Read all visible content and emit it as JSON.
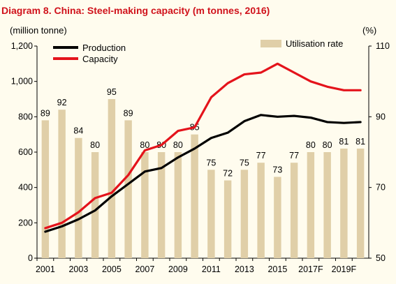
{
  "colors": {
    "production": "#000000",
    "capacity": "#e4131b",
    "utilisation": "#e0cfa8",
    "title": "#d0121b",
    "background": "#fffcee"
  },
  "chart_data": {
    "type": "bar+line",
    "title": "Diagram 8. China: Steel-making capacity (m tonnes, 2016)",
    "left_axis_label": "(million tonne)",
    "right_axis_label": "(%)",
    "ylim_left": [
      0,
      1200
    ],
    "yticks_left": [
      "0",
      "200",
      "400",
      "600",
      "800",
      "1,000",
      "1,200"
    ],
    "ylim_right": [
      50,
      110
    ],
    "yticks_right": [
      "50",
      "70",
      "90",
      "110"
    ],
    "categories": [
      "2001",
      "2002",
      "2003",
      "2004",
      "2005",
      "2006",
      "2007",
      "2008",
      "2009",
      "2010",
      "2011",
      "2012",
      "2013",
      "2014",
      "2015",
      "2016",
      "2017F",
      "2018F",
      "2019F",
      "2020F"
    ],
    "x_tick_labels": [
      "2001",
      "",
      "2003",
      "",
      "2005",
      "",
      "2007",
      "",
      "2009",
      "",
      "2011",
      "",
      "2013",
      "",
      "2015",
      "",
      "2017F",
      "",
      "2019F",
      ""
    ],
    "legend": [
      "Production",
      "Capacity",
      "Utilisation rate"
    ],
    "series": [
      {
        "name": "Utilisation rate",
        "type": "bar",
        "axis": "right",
        "values": [
          89,
          92,
          84,
          80,
          95,
          89,
          80,
          80,
          80,
          85,
          75,
          72,
          75,
          77,
          73,
          77,
          80,
          80,
          81,
          81
        ]
      },
      {
        "name": "Production",
        "type": "line",
        "axis": "left",
        "values": [
          150,
          180,
          220,
          270,
          350,
          420,
          490,
          510,
          570,
          620,
          680,
          710,
          775,
          810,
          800,
          805,
          795,
          770,
          765,
          770
        ]
      },
      {
        "name": "Capacity",
        "type": "line",
        "axis": "left",
        "values": [
          170,
          200,
          260,
          340,
          370,
          470,
          610,
          640,
          720,
          740,
          910,
          990,
          1040,
          1050,
          1100,
          1050,
          1000,
          970,
          950,
          950
        ]
      }
    ],
    "bar_labels": [
      "89",
      "92",
      "84",
      "80",
      "95",
      "89",
      "80",
      "80",
      "80",
      "85",
      "75",
      "72",
      "75",
      "77",
      "73",
      "77",
      "80",
      "80",
      "81",
      "81"
    ]
  }
}
